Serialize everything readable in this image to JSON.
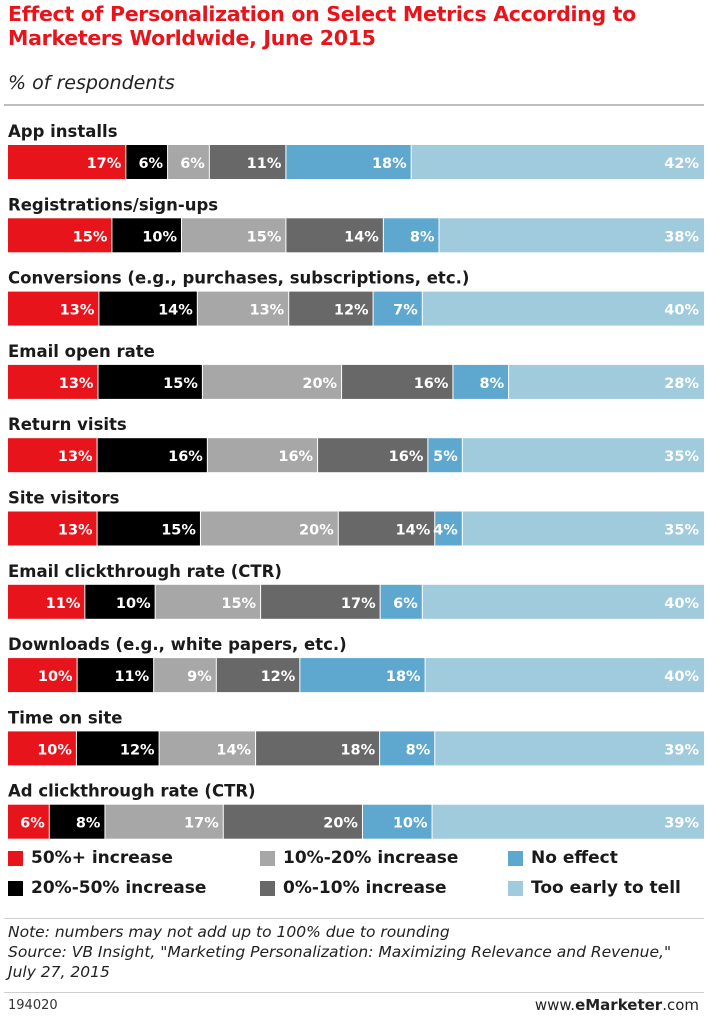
{
  "title": "Effect of Personalization on Select Metrics According to Marketers Worldwide, June 2015",
  "subtitle": "% of respondents",
  "colors": {
    "50%+ increase": "#e8141b",
    "20%-50% increase": "#000000",
    "10%-20% increase": "#a7a7a7",
    "0%-10% increase": "#686868",
    "No effect": "#5ea8cf",
    "Too early to tell": "#9fcbdc"
  },
  "chart_data": {
    "type": "bar",
    "orientation": "horizontal",
    "stacked": true,
    "value_suffix": "%",
    "categories": [
      "App installs",
      "Registrations/sign-ups",
      "Conversions (e.g., purchases, subscriptions, etc.)",
      "Email open rate",
      "Return visits",
      "Site visitors",
      "Email clickthrough rate (CTR)",
      "Downloads (e.g., white papers, etc.)",
      "Time on site",
      "Ad clickthrough rate (CTR)"
    ],
    "series": [
      {
        "name": "50%+ increase",
        "values": [
          17,
          15,
          13,
          13,
          13,
          13,
          11,
          10,
          10,
          6
        ]
      },
      {
        "name": "20%-50% increase",
        "values": [
          6,
          10,
          14,
          15,
          16,
          15,
          10,
          11,
          12,
          8
        ]
      },
      {
        "name": "10%-20% increase",
        "values": [
          6,
          15,
          13,
          20,
          16,
          20,
          15,
          9,
          14,
          17
        ]
      },
      {
        "name": "0%-10% increase",
        "values": [
          11,
          14,
          12,
          16,
          16,
          14,
          17,
          12,
          18,
          20
        ]
      },
      {
        "name": "No effect",
        "values": [
          18,
          8,
          7,
          8,
          5,
          4,
          6,
          18,
          8,
          10
        ]
      },
      {
        "name": "Too early to tell",
        "values": [
          42,
          38,
          40,
          28,
          35,
          35,
          40,
          40,
          39,
          39
        ]
      }
    ],
    "legend_position": "bottom"
  },
  "legend": [
    {
      "label": "50%+ increase",
      "color": "#e8141b"
    },
    {
      "label": "20%-50% increase",
      "color": "#000000"
    },
    {
      "label": "10%-20% increase",
      "color": "#a7a7a7"
    },
    {
      "label": "0%-10% increase",
      "color": "#686868"
    },
    {
      "label": "No effect",
      "color": "#5ea8cf"
    },
    {
      "label": "Too early to tell",
      "color": "#9fcbdc"
    }
  ],
  "notes": {
    "note": "Note: numbers may not add up to 100% due to rounding",
    "source": "Source: VB Insight, \"Marketing Personalization: Maximizing Relevance and Revenue,\" July 27, 2015"
  },
  "footer": {
    "id": "194020",
    "brand_prefix": "www.",
    "brand_name": "eMarketer",
    "brand_suffix": ".com"
  }
}
